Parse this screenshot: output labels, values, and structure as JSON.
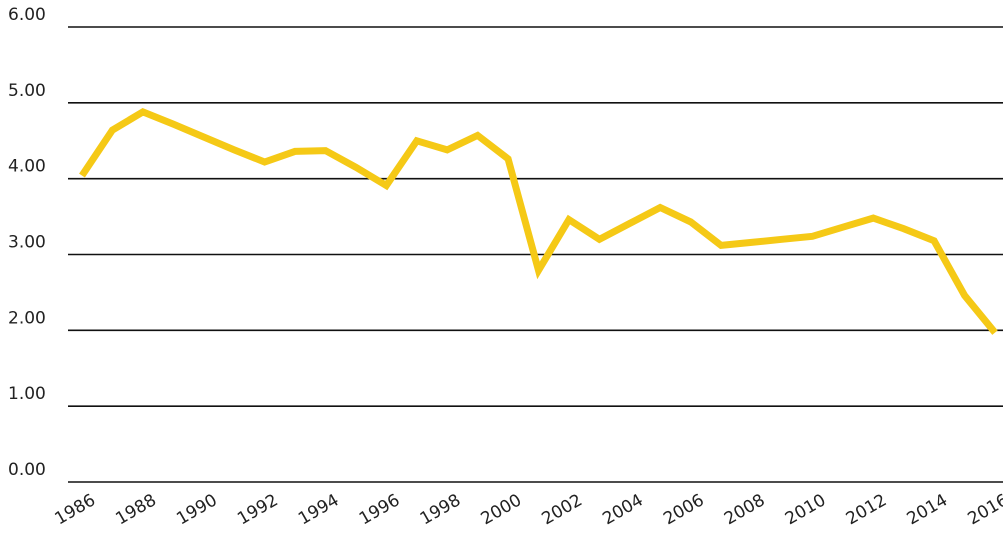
{
  "chart_data": {
    "type": "line",
    "x": [
      1986,
      1987,
      1988,
      1989,
      1990,
      1991,
      1992,
      1993,
      1994,
      1995,
      1996,
      1997,
      1998,
      1999,
      2000,
      2001,
      2002,
      2003,
      2004,
      2005,
      2006,
      2007,
      2008,
      2009,
      2010,
      2011,
      2012,
      2013,
      2014,
      2015,
      2016
    ],
    "series": [
      {
        "color": "#f5c916",
        "values": [
          4.04,
          4.64,
          4.88,
          4.72,
          4.55,
          4.38,
          4.22,
          4.36,
          4.37,
          4.15,
          3.91,
          4.5,
          4.38,
          4.57,
          4.26,
          2.79,
          3.46,
          3.2,
          3.41,
          3.62,
          3.43,
          3.12,
          3.16,
          3.2,
          3.24,
          3.36,
          3.48,
          3.34,
          3.18,
          2.46,
          1.97
        ]
      }
    ],
    "xlim": [
      1986,
      2016
    ],
    "xticks": [
      1986,
      1988,
      1990,
      1992,
      1994,
      1996,
      1998,
      2000,
      2002,
      2004,
      2006,
      2008,
      2010,
      2012,
      2014,
      2016
    ],
    "ylim": [
      0,
      6
    ],
    "yticks": [
      {
        "value": 0,
        "label": "0.00"
      },
      {
        "value": 1,
        "label": "1.00"
      },
      {
        "value": 2,
        "label": "2.00"
      },
      {
        "value": 3,
        "label": "3.00"
      },
      {
        "value": 4,
        "label": "4.00"
      },
      {
        "value": 5,
        "label": "5.00"
      },
      {
        "value": 6,
        "label": "6.00"
      }
    ],
    "grid": true
  }
}
